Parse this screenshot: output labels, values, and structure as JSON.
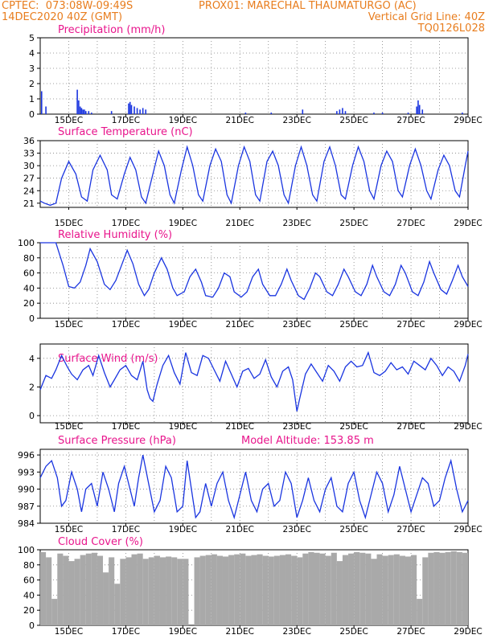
{
  "header": {
    "left_line1": "CPTEC:  073:08W-09:49S",
    "center_line1": "PROX01: MARECHAL THAUMATURGO (AC)",
    "left_line2": "14DEC2020 40Z (GMT)",
    "right_line2": "Vertical Grid Line: 40Z",
    "right_line3": "TQ0126L028"
  },
  "x_ticks": [
    "15DEC",
    "17DEC",
    "19DEC",
    "21DEC",
    "23DEC",
    "25DEC",
    "27DEC",
    "29DEC"
  ],
  "colors": {
    "line": "#1a35e0",
    "title": "#e8158c",
    "header": "#e87d1e",
    "cloud": "#a9a9a9",
    "grid": "#808080"
  },
  "chart_data": [
    {
      "type": "bar",
      "title": "Precipitation (mm/h)",
      "ylim": [
        0,
        5
      ],
      "yticks": [
        0,
        1,
        2,
        3,
        4,
        5
      ],
      "x_range_days": [
        14,
        29
      ],
      "x": [
        14.05,
        14.2,
        15.3,
        15.35,
        15.4,
        15.45,
        15.5,
        15.55,
        15.6,
        15.7,
        15.8,
        16.5,
        17.1,
        17.15,
        17.2,
        17.3,
        17.4,
        17.5,
        17.6,
        17.7,
        21.2,
        22.1,
        23.2,
        24.4,
        24.5,
        24.6,
        24.7,
        25.7,
        26.0,
        26.9,
        27.2,
        27.25,
        27.3,
        27.4,
        28.8
      ],
      "values": [
        1.5,
        0.5,
        1.6,
        0.9,
        0.5,
        0.4,
        0.3,
        0.3,
        0.2,
        0.2,
        0.1,
        0.2,
        0.7,
        0.8,
        0.6,
        0.5,
        0.4,
        0.3,
        0.4,
        0.3,
        0.1,
        0.1,
        0.3,
        0.2,
        0.3,
        0.4,
        0.2,
        0.1,
        0.1,
        0.1,
        0.5,
        0.9,
        0.6,
        0.3,
        0.1
      ]
    },
    {
      "type": "line",
      "title": "Surface Temperature (nC)",
      "ylim": [
        20,
        36
      ],
      "yticks": [
        21,
        24,
        27,
        30,
        33,
        36
      ],
      "x_range_days": [
        14,
        29
      ],
      "x": [
        14.0,
        14.15,
        14.35,
        14.55,
        14.75,
        15.0,
        15.25,
        15.45,
        15.65,
        15.85,
        16.1,
        16.35,
        16.5,
        16.7,
        16.95,
        17.15,
        17.35,
        17.55,
        17.7,
        17.95,
        18.15,
        18.35,
        18.55,
        18.7,
        18.95,
        19.15,
        19.35,
        19.55,
        19.7,
        19.95,
        20.15,
        20.35,
        20.55,
        20.7,
        20.95,
        21.15,
        21.35,
        21.55,
        21.7,
        21.95,
        22.15,
        22.35,
        22.55,
        22.7,
        22.95,
        23.15,
        23.35,
        23.55,
        23.7,
        23.95,
        24.15,
        24.35,
        24.55,
        24.7,
        24.95,
        25.15,
        25.35,
        25.55,
        25.7,
        25.95,
        26.15,
        26.35,
        26.55,
        26.7,
        26.95,
        27.15,
        27.35,
        27.55,
        27.7,
        27.95,
        28.15,
        28.35,
        28.55,
        28.7,
        28.9,
        29.0
      ],
      "values": [
        21.5,
        21,
        20.5,
        21,
        27,
        31,
        28,
        22.5,
        21.5,
        29,
        32.5,
        29,
        23,
        22,
        28,
        32,
        29,
        22.5,
        21,
        28,
        33.5,
        30,
        23,
        21,
        29,
        34.5,
        30,
        23,
        21.5,
        30,
        34,
        31,
        23,
        21,
        30,
        34.5,
        31,
        23,
        21.5,
        31,
        33.5,
        30,
        23,
        21,
        30,
        34.5,
        30,
        23,
        21.5,
        31,
        34.5,
        30,
        23,
        22,
        30,
        34.5,
        31,
        24,
        22,
        30,
        33.5,
        31,
        24,
        22.5,
        30,
        34,
        30,
        24,
        22,
        29,
        32.5,
        30,
        24,
        22.5,
        30,
        33.5
      ]
    },
    {
      "type": "line",
      "title": "Relative Humidity (%)",
      "ylim": [
        0,
        100
      ],
      "yticks": [
        0,
        20,
        40,
        60,
        80,
        100
      ],
      "x_range_days": [
        14,
        29
      ],
      "x": [
        14.0,
        14.3,
        14.55,
        14.8,
        15.0,
        15.2,
        15.4,
        15.6,
        15.75,
        16.0,
        16.25,
        16.45,
        16.65,
        16.85,
        17.05,
        17.25,
        17.45,
        17.65,
        17.8,
        18.0,
        18.25,
        18.45,
        18.65,
        18.8,
        19.05,
        19.25,
        19.45,
        19.65,
        19.8,
        20.05,
        20.25,
        20.45,
        20.65,
        20.8,
        21.05,
        21.25,
        21.45,
        21.65,
        21.8,
        22.05,
        22.25,
        22.45,
        22.65,
        22.8,
        23.05,
        23.25,
        23.45,
        23.65,
        23.8,
        24.05,
        24.25,
        24.45,
        24.65,
        24.8,
        25.05,
        25.25,
        25.45,
        25.65,
        25.8,
        26.05,
        26.25,
        26.45,
        26.65,
        26.8,
        27.05,
        27.25,
        27.45,
        27.65,
        27.8,
        28.05,
        28.25,
        28.45,
        28.65,
        28.8,
        29.0
      ],
      "values": [
        100,
        100,
        100,
        70,
        42,
        40,
        48,
        70,
        92,
        75,
        45,
        38,
        50,
        70,
        90,
        72,
        45,
        30,
        38,
        60,
        80,
        65,
        40,
        30,
        35,
        55,
        65,
        48,
        30,
        28,
        40,
        60,
        55,
        35,
        28,
        35,
        55,
        65,
        45,
        30,
        30,
        45,
        65,
        50,
        30,
        25,
        40,
        60,
        55,
        35,
        30,
        45,
        65,
        55,
        35,
        30,
        45,
        70,
        55,
        35,
        30,
        45,
        70,
        60,
        35,
        30,
        48,
        75,
        60,
        38,
        32,
        50,
        70,
        55,
        42
      ]
    },
    {
      "type": "line",
      "title": "Surface Wind (m/s)",
      "ylim": [
        -0.5,
        5
      ],
      "yticks": [
        0,
        2,
        4
      ],
      "x_range_days": [
        14,
        29
      ],
      "x": [
        14.0,
        14.2,
        14.4,
        14.55,
        14.75,
        14.95,
        15.1,
        15.3,
        15.5,
        15.7,
        15.85,
        16.05,
        16.25,
        16.45,
        16.6,
        16.8,
        17.0,
        17.2,
        17.4,
        17.6,
        17.75,
        17.85,
        17.95,
        18.1,
        18.3,
        18.5,
        18.7,
        18.9,
        19.1,
        19.3,
        19.5,
        19.7,
        19.9,
        20.1,
        20.3,
        20.5,
        20.7,
        20.9,
        21.1,
        21.3,
        21.5,
        21.7,
        21.9,
        22.1,
        22.3,
        22.5,
        22.7,
        22.85,
        23.0,
        23.1,
        23.3,
        23.5,
        23.7,
        23.9,
        24.1,
        24.3,
        24.5,
        24.7,
        24.9,
        25.1,
        25.3,
        25.5,
        25.7,
        25.9,
        26.1,
        26.3,
        26.5,
        26.7,
        26.9,
        27.1,
        27.3,
        27.5,
        27.7,
        27.9,
        28.1,
        28.3,
        28.5,
        28.7,
        28.9,
        29.0
      ],
      "values": [
        1.8,
        2.8,
        2.6,
        3.2,
        4.2,
        3.4,
        2.9,
        2.5,
        3.2,
        3.5,
        2.8,
        4.2,
        3.0,
        2.0,
        2.5,
        3.2,
        3.5,
        2.8,
        2.5,
        3.8,
        1.8,
        1.2,
        1.0,
        2.2,
        3.5,
        4.2,
        3.0,
        2.2,
        4.4,
        3.0,
        2.8,
        4.2,
        4.0,
        3.2,
        2.4,
        3.8,
        2.9,
        2.0,
        3.1,
        3.3,
        2.6,
        2.9,
        3.9,
        2.7,
        2.0,
        3.1,
        3.4,
        2.5,
        0.3,
        1.2,
        2.9,
        3.6,
        3.0,
        2.4,
        3.5,
        3.1,
        2.4,
        3.4,
        3.8,
        3.4,
        3.5,
        4.4,
        3.0,
        2.8,
        3.1,
        3.7,
        3.2,
        3.4,
        2.9,
        3.8,
        3.5,
        3.2,
        4.0,
        3.5,
        2.8,
        3.4,
        3.1,
        2.4,
        3.5,
        4.3
      ]
    },
    {
      "type": "line",
      "title": "Surface Pressure (hPa)",
      "annotation": "Model Altitude: 153.85 m",
      "ylim": [
        984,
        997
      ],
      "yticks": [
        984,
        987,
        990,
        993,
        996
      ],
      "x_range_days": [
        14,
        29
      ],
      "x": [
        14.0,
        14.2,
        14.4,
        14.6,
        14.75,
        14.9,
        15.1,
        15.3,
        15.45,
        15.6,
        15.8,
        16.0,
        16.2,
        16.4,
        16.6,
        16.75,
        16.95,
        17.1,
        17.3,
        17.45,
        17.6,
        17.8,
        18.0,
        18.2,
        18.4,
        18.6,
        18.8,
        19.0,
        19.15,
        19.3,
        19.45,
        19.6,
        19.8,
        20.0,
        20.2,
        20.4,
        20.6,
        20.8,
        21.0,
        21.2,
        21.4,
        21.6,
        21.8,
        22.0,
        22.2,
        22.4,
        22.6,
        22.8,
        23.0,
        23.2,
        23.4,
        23.6,
        23.8,
        24.0,
        24.2,
        24.4,
        24.6,
        24.8,
        25.0,
        25.2,
        25.4,
        25.6,
        25.8,
        26.0,
        26.2,
        26.4,
        26.6,
        26.8,
        27.0,
        27.2,
        27.4,
        27.6,
        27.8,
        28.0,
        28.2,
        28.4,
        28.6,
        28.8,
        29.0
      ],
      "values": [
        992,
        994,
        995,
        992,
        987,
        988,
        993,
        990,
        986,
        990,
        991,
        987,
        993,
        990,
        986,
        991,
        994,
        991,
        987,
        992,
        996,
        991,
        986,
        988,
        994,
        992,
        986,
        987,
        995,
        990,
        985,
        986,
        991,
        987,
        991,
        993,
        988,
        985,
        989,
        993,
        988,
        986,
        990,
        991,
        987,
        988,
        993,
        991,
        985,
        988,
        992,
        988,
        986,
        990,
        992,
        987,
        986,
        991,
        993,
        988,
        985,
        989,
        993,
        991,
        986,
        989,
        994,
        990,
        986,
        989,
        992,
        991,
        987,
        988,
        992,
        995,
        990,
        986,
        988
      ]
    },
    {
      "type": "bar",
      "title": "Cloud Cover (%)",
      "ylim": [
        0,
        100
      ],
      "yticks": [
        0,
        20,
        40,
        60,
        80,
        100
      ],
      "x_range_days": [
        14,
        29
      ],
      "x": [
        14.0,
        14.2,
        14.4,
        14.6,
        14.8,
        15.0,
        15.2,
        15.4,
        15.6,
        15.8,
        16.0,
        16.2,
        16.4,
        16.6,
        16.8,
        17.0,
        17.2,
        17.4,
        17.6,
        17.8,
        18.0,
        18.2,
        18.4,
        18.6,
        18.8,
        19.0,
        19.2,
        19.4,
        19.6,
        19.8,
        20.0,
        20.2,
        20.4,
        20.6,
        20.8,
        21.0,
        21.2,
        21.4,
        21.6,
        21.8,
        22.0,
        22.2,
        22.4,
        22.6,
        22.8,
        23.0,
        23.2,
        23.4,
        23.6,
        23.8,
        24.0,
        24.2,
        24.4,
        24.6,
        24.8,
        25.0,
        25.2,
        25.4,
        25.6,
        25.8,
        26.0,
        26.2,
        26.4,
        26.6,
        26.8,
        27.0,
        27.2,
        27.4,
        27.6,
        27.8,
        28.0,
        28.2,
        28.4,
        28.6,
        28.8,
        29.0
      ],
      "values": [
        97,
        90,
        35,
        95,
        92,
        85,
        88,
        93,
        95,
        96,
        92,
        70,
        90,
        55,
        88,
        90,
        94,
        95,
        88,
        90,
        92,
        90,
        91,
        90,
        88,
        88,
        0,
        90,
        92,
        93,
        94,
        92,
        91,
        93,
        94,
        95,
        92,
        93,
        94,
        92,
        91,
        92,
        93,
        94,
        92,
        90,
        95,
        97,
        96,
        95,
        92,
        96,
        85,
        93,
        95,
        97,
        96,
        95,
        88,
        94,
        92,
        93,
        94,
        92,
        91,
        93,
        35,
        90,
        96,
        97,
        96,
        97,
        98,
        97,
        96,
        94
      ]
    }
  ]
}
